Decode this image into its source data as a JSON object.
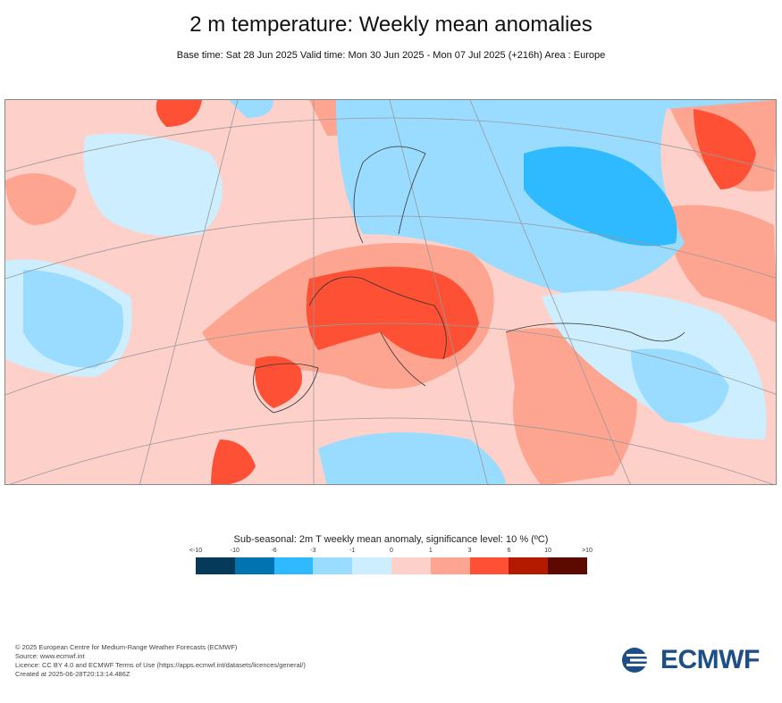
{
  "title": "2 m temperature: Weekly mean anomalies",
  "subtitle": "Base time: Sat 28 Jun 2025 Valid time: Mon 30 Jun 2025 - Mon 07 Jul 2025 (+216h) Area : Europe",
  "legend": {
    "title": "Sub-seasonal: 2m T weekly mean anomaly, significance level: 10 % (ºC)",
    "ticks": [
      "<-10",
      "-10",
      "-6",
      "-3",
      "-1",
      "0",
      "1",
      "3",
      "6",
      "10",
      ">10"
    ],
    "colors": [
      "#053a5a",
      "#0073b0",
      "#2fbaff",
      "#9adcff",
      "#cdeeff",
      "#fdd1ca",
      "#fda590",
      "#fd5035",
      "#b31a00",
      "#5c0a00"
    ]
  },
  "footer": {
    "line1": "© 2025 European Centre for Medium-Range Weather Forecasts (ECMWF)",
    "line2": "Source: www.ecmwf.int",
    "line3": "Licence: CC BY 4.0 and ECMWF Terms of Use (https://apps.ecmwf.int/datasets/licences/general/)",
    "line4": "Created at 2025-06-28T20:13:14.486Z"
  },
  "logo_text": "ECMWF"
}
